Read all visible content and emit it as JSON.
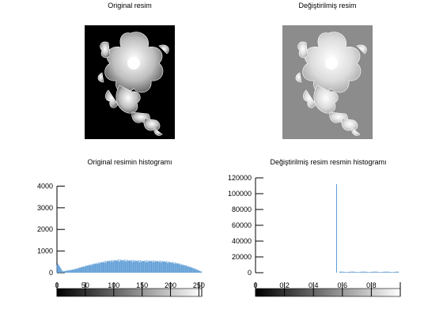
{
  "figure": {
    "orig_image_title": "Original resim",
    "mod_image_title": "Değiştirilmiş resim"
  },
  "chart_data": [
    {
      "type": "bar",
      "title": "Original resimin histogramı",
      "xlabel": "",
      "ylabel": "",
      "xlim": [
        0,
        255
      ],
      "ylim": [
        0,
        4200
      ],
      "xticks": [
        0,
        50,
        100,
        150,
        200,
        250
      ],
      "yticks": [
        0,
        1000,
        2000,
        3000,
        4000
      ],
      "bar_color": "#5b9bd5",
      "colorbar": "gray",
      "x_centers": [
        2,
        10,
        30,
        50,
        70,
        90,
        110,
        130,
        150,
        170,
        190,
        210,
        230,
        245,
        253
      ],
      "values": [
        400,
        60,
        150,
        300,
        420,
        520,
        560,
        540,
        520,
        520,
        500,
        430,
        300,
        160,
        60
      ]
    },
    {
      "type": "bar",
      "title": "Değiştirilmiş resim resmin histogramı",
      "xlabel": "",
      "ylabel": "",
      "xlim": [
        0,
        1
      ],
      "ylim": [
        0,
        125000
      ],
      "xticks": [
        0,
        0.2,
        0.4,
        0.6,
        0.8
      ],
      "xtick_labels": [
        "0",
        "0.2",
        "0.4",
        "0.6",
        "0.8"
      ],
      "yticks": [
        0,
        20000,
        40000,
        60000,
        80000,
        100000,
        120000
      ],
      "bar_color": "#5b9bd5",
      "colorbar": "gray",
      "spike": {
        "x": 0.56,
        "value": 112000
      },
      "tail_x": [
        0.6,
        0.7,
        0.8,
        0.9,
        0.98
      ],
      "tail_values": [
        900,
        1400,
        1300,
        1000,
        700
      ]
    }
  ]
}
